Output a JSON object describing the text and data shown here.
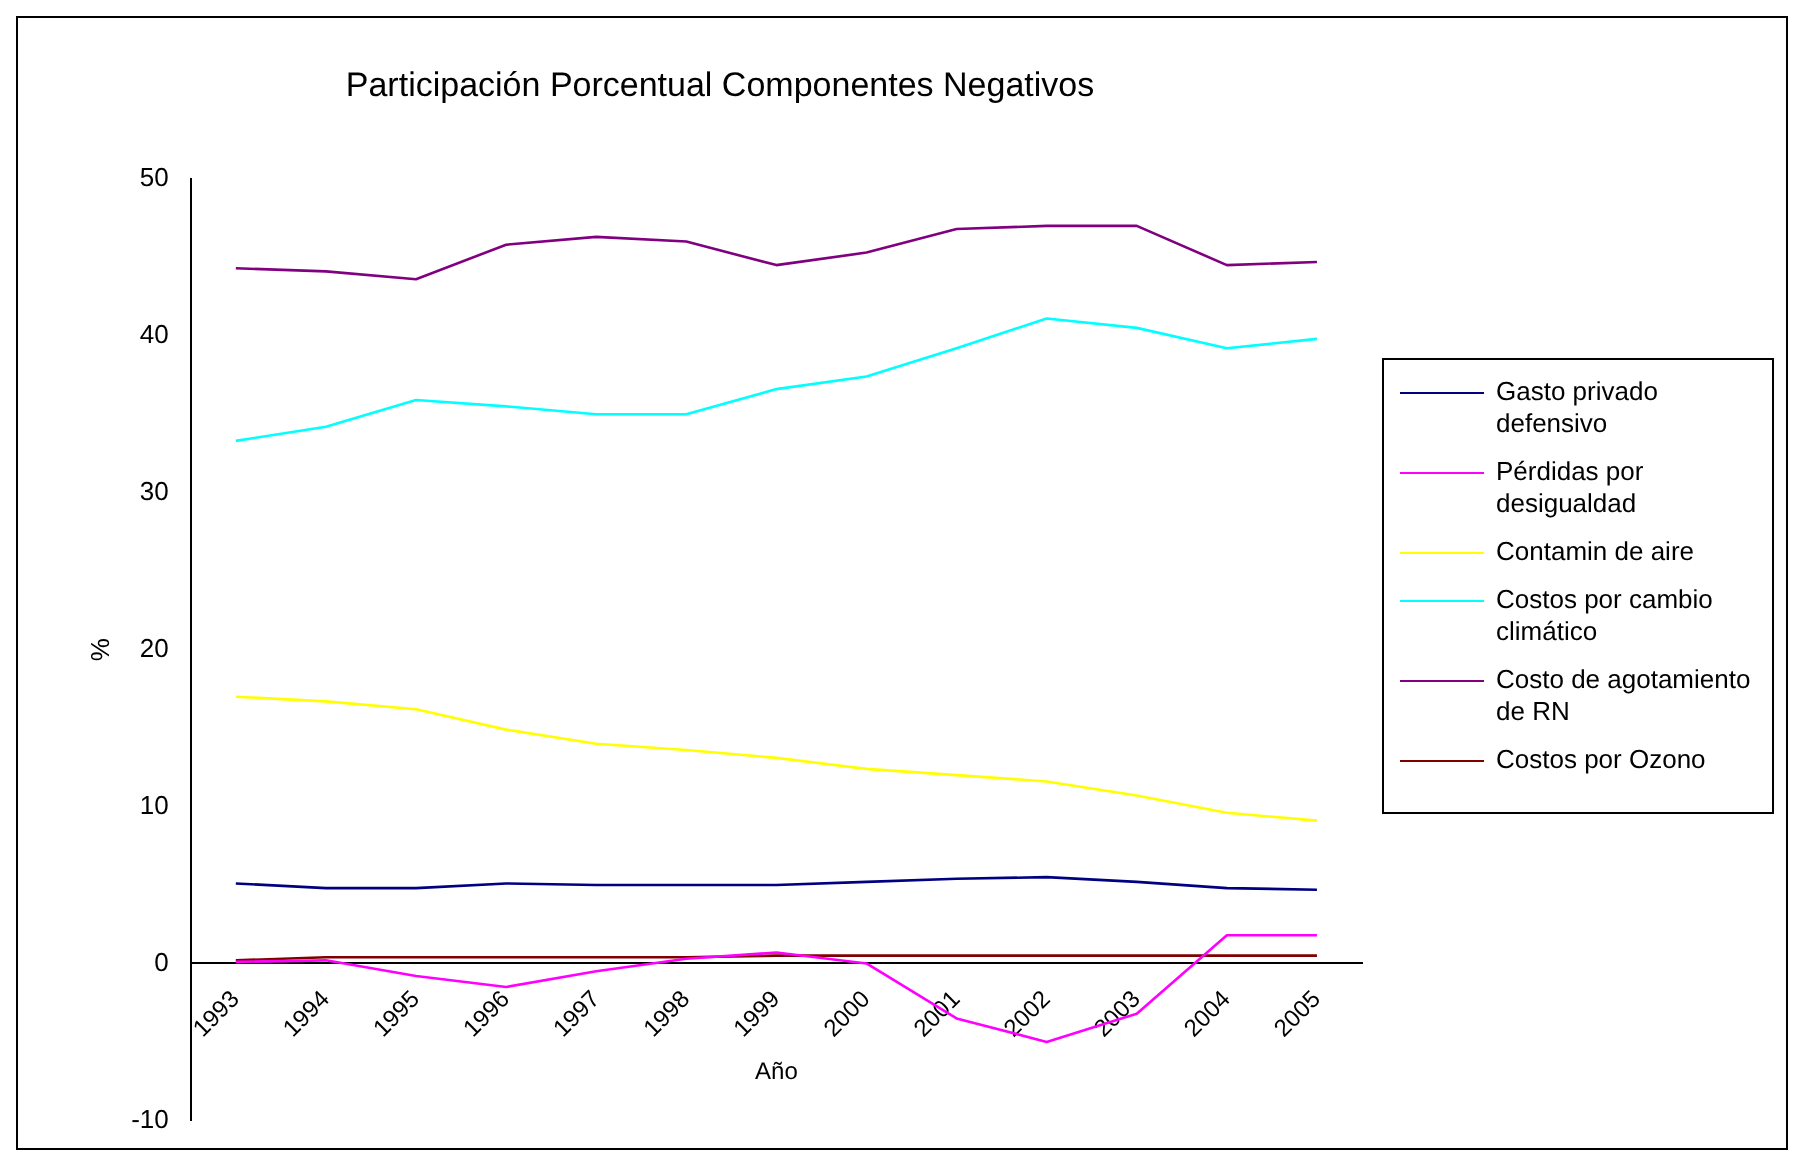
{
  "chart_data": {
    "type": "line",
    "title": "Participación Porcentual Componentes Negativos",
    "xlabel": "Año",
    "ylabel": "%",
    "categories": [
      "1993",
      "1994",
      "1995",
      "1996",
      "1997",
      "1998",
      "1999",
      "2000",
      "2001",
      "2002",
      "2003",
      "2004",
      "2005"
    ],
    "series": [
      {
        "name": "Gasto privado defensivo",
        "color": "#000080",
        "values": [
          5.1,
          4.8,
          4.8,
          5.1,
          5.0,
          5.0,
          5.0,
          5.2,
          5.4,
          5.5,
          5.2,
          4.8,
          4.7
        ]
      },
      {
        "name": "Pérdidas por desigualdad",
        "color": "#ff00ff",
        "values": [
          0.1,
          0.2,
          -0.8,
          -1.5,
          -0.5,
          0.3,
          0.7,
          0.0,
          -3.5,
          -5.0,
          -3.2,
          1.8,
          1.8
        ]
      },
      {
        "name": "Contamin de aire",
        "color": "#ffff00",
        "values": [
          17.0,
          16.7,
          16.2,
          14.9,
          14.0,
          13.6,
          13.1,
          12.4,
          12.0,
          11.6,
          10.7,
          9.6,
          9.1
        ]
      },
      {
        "name": "Costos por cambio climático",
        "color": "#00ffff",
        "values": [
          33.3,
          34.2,
          35.9,
          35.5,
          35.0,
          35.0,
          36.6,
          37.4,
          39.2,
          41.1,
          40.5,
          39.2,
          39.8
        ]
      },
      {
        "name": "Costo de agotamiento de RN",
        "color": "#800080",
        "values": [
          44.3,
          44.1,
          43.6,
          45.8,
          46.3,
          46.0,
          44.5,
          45.3,
          46.8,
          47.0,
          47.0,
          44.5,
          44.7
        ]
      },
      {
        "name": "Costos por Ozono",
        "color": "#800000",
        "values": [
          0.2,
          0.4,
          0.4,
          0.4,
          0.4,
          0.4,
          0.5,
          0.5,
          0.5,
          0.5,
          0.5,
          0.5,
          0.5
        ]
      }
    ],
    "ylim": [
      -10,
      50
    ],
    "yticks": [
      -10,
      0,
      10,
      20,
      30,
      40,
      50
    ],
    "grid": false,
    "legend": "right",
    "marker": "none",
    "line_style": "solid"
  }
}
